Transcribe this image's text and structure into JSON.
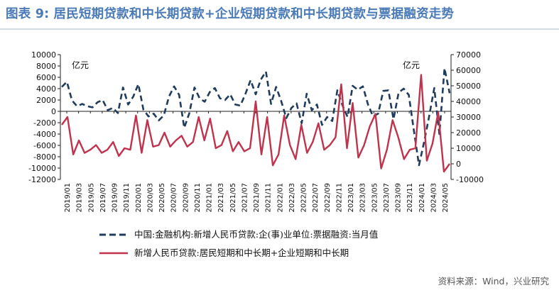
{
  "header": {
    "title": "图表 9:  居民短期贷款和中长期贷款+企业短期贷款和中长期贷款与票据融资走势"
  },
  "footer": {
    "source": "资料来源：Wind，兴业研究"
  },
  "chart_data": {
    "type": "line",
    "left_axis": {
      "ylim": [
        -12000,
        10000
      ],
      "step": 2000,
      "unit_label": "亿元"
    },
    "right_axis": {
      "ylim": [
        -10000,
        70000
      ],
      "step": 10000,
      "unit_label": "亿元"
    },
    "x_tick_labels": [
      "2019/01",
      "2019/03",
      "2019/05",
      "2019/07",
      "2019/09",
      "2019/11",
      "2020/01",
      "2020/03",
      "2020/05",
      "2020/07",
      "2020/09",
      "2020/11",
      "2021/01",
      "2021/03",
      "2021/05",
      "2021/07",
      "2021/09",
      "2021/11",
      "2022/01",
      "2022/03",
      "2022/05",
      "2022/07",
      "2022/09",
      "2022/11",
      "2023/01",
      "2023/03",
      "2023/05",
      "2023/07",
      "2023/09",
      "2023/11",
      "2024/01",
      "2024/03",
      "2024/05"
    ],
    "series": [
      {
        "name": "中国:金融机构:新增人民币贷款:企(事)业单位:票据融资:当月值",
        "axis": "left",
        "style": "dashed",
        "color": "#1f3b5e",
        "values": [
          4300,
          5200,
          1900,
          900,
          1300,
          900,
          700,
          1600,
          2000,
          200,
          600,
          -300,
          4200,
          1200,
          2600,
          4800,
          300,
          -900,
          -400,
          -1600,
          -700,
          2600,
          4400,
          2900,
          -2900,
          -300,
          4200,
          2300,
          1700,
          3400,
          4100,
          2300,
          2000,
          3000,
          1200,
          1000,
          3100,
          5500,
          3000,
          5600,
          7000,
          1300,
          4300,
          1800,
          -1200,
          600,
          1400,
          -2100,
          3100,
          200,
          1200,
          -2400,
          -1000,
          -1700,
          3700,
          1100,
          -1000,
          4500,
          3800,
          4400,
          1200,
          -900,
          -400,
          3600,
          3700,
          -1400,
          3300,
          4000,
          2900,
          -3400,
          -9500,
          -5400,
          -800,
          4100,
          -4000,
          7600,
          3200
        ]
      },
      {
        "name": "新增人民币贷款:居民短期和中长期+企业短期和中长期",
        "axis": "right",
        "style": "solid",
        "color": "#c0334d",
        "values": [
          25000,
          30000,
          6000,
          15000,
          7000,
          9000,
          12000,
          7000,
          9000,
          14000,
          5000,
          10000,
          9000,
          31000,
          7000,
          28000,
          11000,
          12000,
          20000,
          11000,
          15000,
          18000,
          11000,
          14000,
          30000,
          15000,
          29000,
          10000,
          12000,
          21000,
          8000,
          14000,
          8000,
          10000,
          40000,
          6000,
          30000,
          -1000,
          6000,
          31000,
          12000,
          3000,
          25000,
          7000,
          14000,
          26000,
          9000,
          12000,
          17000,
          51000,
          10000,
          39000,
          4000,
          12000,
          24000,
          32000,
          -3000,
          9000,
          28000,
          17000,
          3000,
          9000,
          10000,
          57000,
          2000,
          13000,
          33000,
          -5000,
          0
        ]
      }
    ]
  }
}
